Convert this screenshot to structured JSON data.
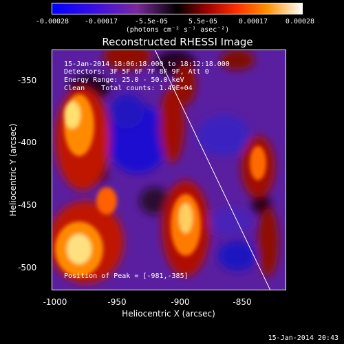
{
  "colorbar": {
    "ticks": [
      "-0.00028",
      "-0.00017",
      "-5.5e-05",
      "5.5e-05",
      "0.00017",
      "0.00028"
    ],
    "units": "(photons cm⁻² s⁻¹ asec⁻²)"
  },
  "title": "Reconstructed RHESSI Image",
  "info": {
    "time_range": "15-Jan-2014 18:06:18.000 to 18:12:18.000",
    "detectors": "Detectors: 3F 5F 6F 7F 8F 9F, Att 0",
    "energy": "Energy Range: 25.0 - 50.0 keV",
    "clean": "Clean    Total counts: 1.49E+04",
    "peak": "Position of Peak = [-981,-385]"
  },
  "chart_data": {
    "type": "heatmap",
    "title": "Reconstructed RHESSI Image",
    "xlabel": "Heliocentric X (arcsec)",
    "ylabel": "Heliocentric Y (arcsec)",
    "xlim": [
      -1000,
      -815
    ],
    "ylim": [
      -520,
      -330
    ],
    "x_ticks": [
      "-1000",
      "-950",
      "-900",
      "-850"
    ],
    "y_ticks": [
      "-350",
      "-400",
      "-450",
      "-500"
    ],
    "colorbar_range": [
      -0.00028,
      0.00028
    ],
    "peak": [
      -981,
      -385
    ]
  },
  "timestamp": "15-Jan-2014 20:43"
}
